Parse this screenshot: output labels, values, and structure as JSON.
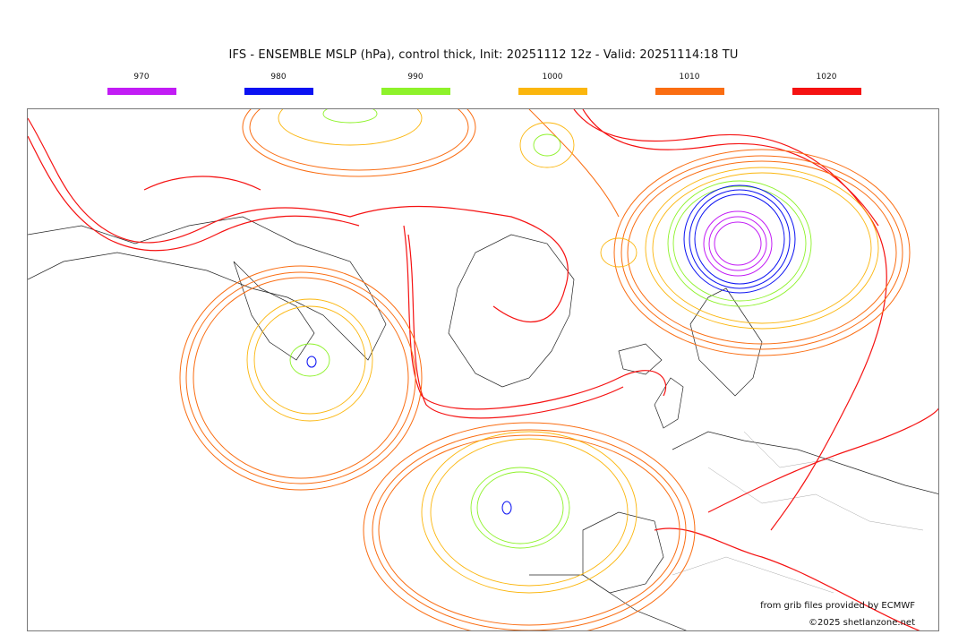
{
  "title": "IFS - ENSEMBLE MSLP (hPa), control thick, Init: 20251112 12z - Valid: 20251114:18 TU",
  "legend": [
    {
      "value": "970",
      "color": "#c21cf5"
    },
    {
      "value": "980",
      "color": "#0b12f2"
    },
    {
      "value": "990",
      "color": "#8ef22a"
    },
    {
      "value": "1000",
      "color": "#fbb60d"
    },
    {
      "value": "1010",
      "color": "#fa6d12"
    },
    {
      "value": "1020",
      "color": "#f51212"
    }
  ],
  "credits": {
    "source": "from grib files provided by ECMWF",
    "copyright": "©2025 shetlanzone.net"
  },
  "isobar_colors": {
    "970": "#c21cf5",
    "980": "#0b12f2",
    "990": "#8ef22a",
    "1000": "#fbb60d",
    "1010": "#fa6d12",
    "1020": "#f51212"
  },
  "land_stroke": "#222222",
  "border_stroke": "#aaaaaa"
}
